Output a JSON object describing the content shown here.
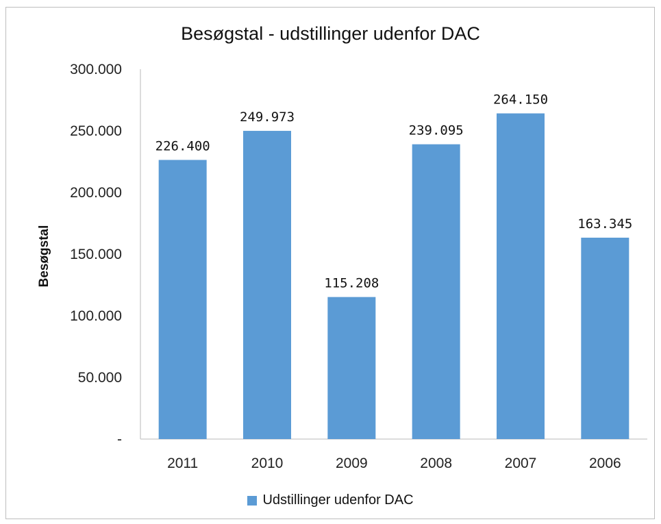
{
  "chart_data": {
    "type": "bar",
    "title": "Besøgstal - udstillinger udenfor DAC",
    "xlabel": "",
    "ylabel": "Besøgstal",
    "categories": [
      "2011",
      "2010",
      "2009",
      "2008",
      "2007",
      "2006"
    ],
    "series": [
      {
        "name": "Udstillinger udenfor DAC",
        "values": [
          226400,
          249973,
          115208,
          239095,
          264150,
          163345
        ],
        "data_labels": [
          "226.400",
          "249.973",
          "115.208",
          "239.095",
          "264.150",
          "163.345"
        ],
        "color": "#5B9BD5"
      }
    ],
    "ylim": [
      0,
      300000
    ],
    "y_ticks": [
      0,
      50000,
      100000,
      150000,
      200000,
      250000,
      300000
    ],
    "y_tick_labels": [
      "-",
      "50.000",
      "100.000",
      "150.000",
      "200.000",
      "250.000",
      "300.000"
    ],
    "grid": false,
    "legend_position": "bottom"
  }
}
